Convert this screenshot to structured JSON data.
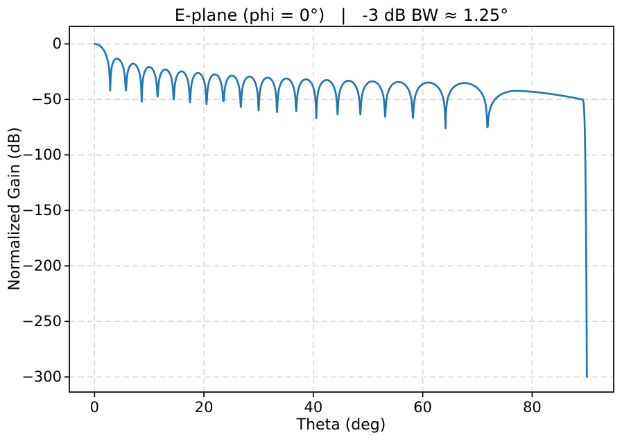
{
  "chart_data": {
    "type": "line",
    "title": "E-plane (phi = 0°)   |   -3 dB BW ≈ 1.25°",
    "xlabel": "Theta (deg)",
    "ylabel": "Normalized Gain (dB)",
    "xlim": [
      -4.6,
      94.9
    ],
    "ylim": [
      -313.6,
      15.8
    ],
    "x_ticks": [
      0,
      20,
      40,
      60,
      80
    ],
    "y_ticks": [
      0,
      -50,
      -100,
      -150,
      -200,
      -250,
      -300
    ],
    "grid": true,
    "legend": "none",
    "colors": {
      "line": "#1f77b4",
      "grid": "#d8d8d8",
      "spine": "#000000",
      "text": "#000000",
      "background": "#ffffff"
    },
    "beamwidth_minus3db_deg": 1.25,
    "series": [
      {
        "name": "E-plane normalized gain",
        "model": {
          "kind": "uniform-aperture-sinc",
          "u_scale": 20,
          "theta_start": 0,
          "theta_end": 90,
          "floor_db": -300,
          "mainlobe_peak": {
            "theta": 0,
            "db": 0
          },
          "null_angles_deg": [
            2.866,
            5.739,
            8.627,
            11.537,
            14.478,
            17.458,
            20.487,
            23.578,
            26.744,
            30.0,
            33.367,
            36.87,
            40.542,
            44.427,
            48.59,
            53.13,
            58.212,
            64.158,
            71.805
          ],
          "null_render_depths_db": [
            -42.0,
            -42.0,
            -52.1,
            -47.5,
            -50.0,
            -52.7,
            -54.2,
            -51.5,
            -56.9,
            -60.0,
            -61.5,
            -60.4,
            -67.0,
            -63.5,
            -63.6,
            -65.6,
            -66.7,
            -76.0,
            -75.0
          ],
          "sidelobe_peak_angles_deg": [
            4.3,
            7.18,
            10.08,
            13.0,
            15.96,
            18.97,
            22.02,
            25.15,
            28.36,
            31.67,
            35.1,
            38.68,
            42.45,
            46.47,
            50.8,
            55.59,
            61.05,
            67.67,
            77.0
          ],
          "sidelobe_peak_levels_db": [
            -13.5,
            -17.9,
            -20.8,
            -23.0,
            -24.7,
            -26.2,
            -27.4,
            -28.5,
            -29.5,
            -30.4,
            -31.2,
            -31.9,
            -32.5,
            -33.2,
            -33.8,
            -34.3,
            -34.8,
            -35.3,
            -42.3
          ],
          "last_lobe": {
            "null_deg": 71.805,
            "peak_deg": 77.0,
            "peak_db": -42.3,
            "knee_deg": 89.1,
            "knee_db": -50,
            "tail_exp": 1.6,
            "plunge_exp": 4,
            "end_deg": 90,
            "end_db": -300
          }
        }
      }
    ]
  }
}
